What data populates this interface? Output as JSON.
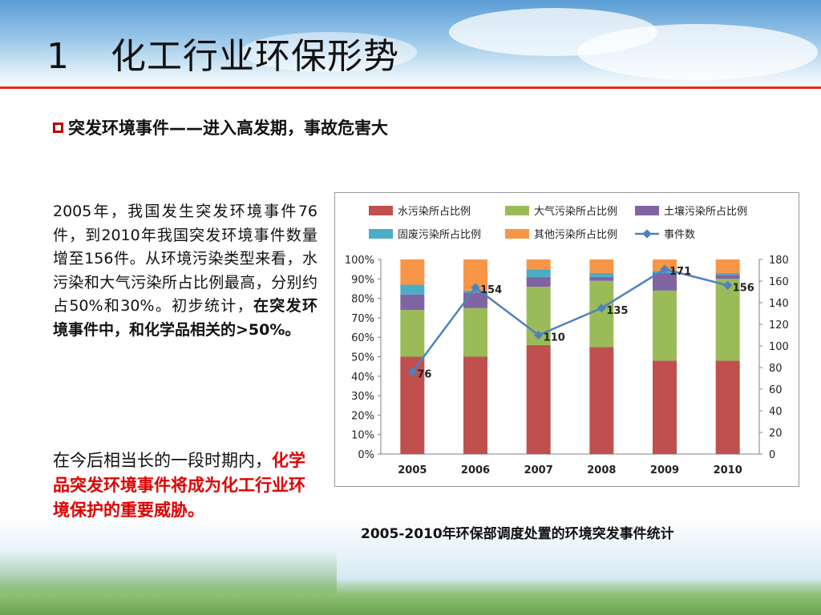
{
  "slide": {
    "title_number": "1",
    "title": "化工行业环保形势",
    "subtitle": "突发环境事件——进入高发期，事故危害大",
    "paragraph1_normal": "2005年，我国发生突发环境事件76件，到2010年我国突发环境事件数量增至156件。从环境污染类型来看，水污染和大气污染所占比例最高，分别约占50%和30%。初步统计，",
    "paragraph1_bold": "在突发环境事件中，和化学品相关的>50%。",
    "paragraph2_normal": "在今后相当长的一段时期内，",
    "paragraph2_red": "化学品突发环境事件将成为化工行业环境保护的重要威胁。",
    "caption": "2005-2010年环保部调度处置的环境突发事件统计"
  },
  "chart_data": {
    "type": "bar",
    "stacked": true,
    "categories": [
      "2005",
      "2006",
      "2007",
      "2008",
      "2009",
      "2010"
    ],
    "series": [
      {
        "name": "水污染所占比例",
        "color": "#c0504d",
        "values": [
          50,
          50,
          56,
          55,
          48,
          48
        ]
      },
      {
        "name": "大气污染所占比例",
        "color": "#9bbb59",
        "values": [
          24,
          25,
          30,
          34,
          36,
          42
        ]
      },
      {
        "name": "土壤污染所占比例",
        "color": "#8064a2",
        "values": [
          8,
          8,
          5,
          2,
          9,
          2
        ]
      },
      {
        "name": "固废污染所占比例",
        "color": "#4bacc6",
        "values": [
          5,
          1,
          4,
          2,
          1,
          1
        ]
      },
      {
        "name": "其他污染所占比例",
        "color": "#f79646",
        "values": [
          13,
          16,
          5,
          7,
          6,
          7
        ]
      }
    ],
    "line_series": {
      "name": "事件数",
      "color": "#4f81bd",
      "values": [
        76,
        154,
        110,
        135,
        171,
        156
      ],
      "labels": [
        "76",
        "154",
        "110",
        "135",
        "171",
        "156"
      ]
    },
    "y_left": {
      "min": 0,
      "max": 100,
      "ticks": [
        "0%",
        "10%",
        "20%",
        "30%",
        "40%",
        "50%",
        "60%",
        "70%",
        "80%",
        "90%",
        "100%"
      ]
    },
    "y_right": {
      "min": 0,
      "max": 180,
      "ticks": [
        "0",
        "20",
        "40",
        "60",
        "80",
        "100",
        "120",
        "140",
        "160",
        "180"
      ]
    },
    "legend_position": "top",
    "grid": false
  }
}
